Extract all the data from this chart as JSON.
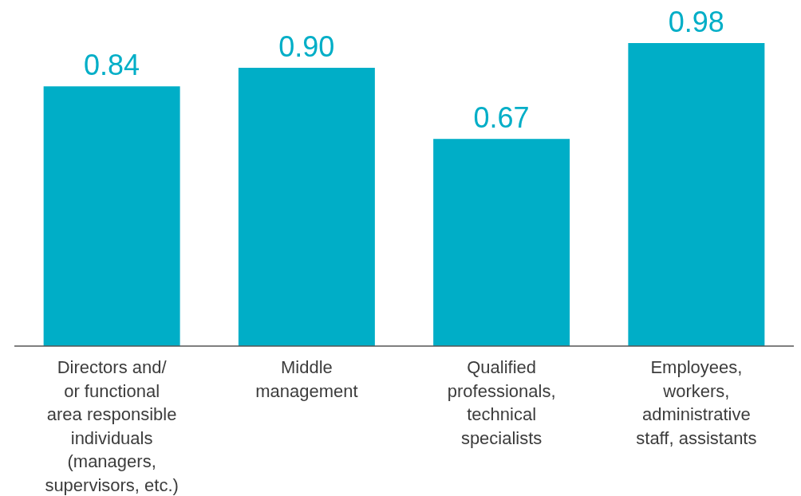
{
  "chart_data": {
    "type": "bar",
    "categories": [
      "Directors and/\nor functional\narea responsible\nindividuals\n(managers,\nsupervisors, etc.)",
      "Middle\nmanagement",
      "Qualified\nprofessionals,\ntechnical\nspecialists",
      "Employees,\nworkers,\nadministrative\nstaff, assistants"
    ],
    "values": [
      0.84,
      0.9,
      0.67,
      0.98
    ],
    "value_labels": [
      "0.84",
      "0.90",
      "0.67",
      "0.98"
    ],
    "color": "#00aec7"
  }
}
